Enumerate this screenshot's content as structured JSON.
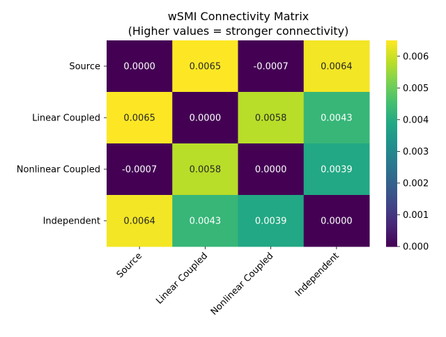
{
  "chart_data": {
    "type": "heatmap",
    "title": "wSMI Connectivity Matrix",
    "subtitle": "(Higher values = stronger connectivity)",
    "row_labels": [
      "Source",
      "Linear Coupled",
      "Nonlinear Coupled",
      "Independent"
    ],
    "col_labels": [
      "Source",
      "Linear Coupled",
      "Nonlinear Coupled",
      "Independent"
    ],
    "values": [
      [
        0.0,
        0.0065,
        -0.0007,
        0.0064
      ],
      [
        0.0065,
        0.0,
        0.0058,
        0.0043
      ],
      [
        -0.0007,
        0.0058,
        0.0,
        0.0039
      ],
      [
        0.0064,
        0.0043,
        0.0039,
        0.0
      ]
    ],
    "annotations": [
      [
        "0.0000",
        "0.0065",
        "-0.0007",
        "0.0064"
      ],
      [
        "0.0065",
        "0.0000",
        "0.0058",
        "0.0043"
      ],
      [
        "-0.0007",
        "0.0058",
        "0.0000",
        "0.0039"
      ],
      [
        "0.0064",
        "0.0043",
        "0.0039",
        "0.0000"
      ]
    ],
    "colormap": "viridis",
    "vmin": 0.0,
    "vmax": 0.0065,
    "colorbar_ticks": [
      "0.000",
      "0.001",
      "0.002",
      "0.003",
      "0.004",
      "0.005",
      "0.006"
    ],
    "colorbar_tick_values": [
      0,
      0.001,
      0.002,
      0.003,
      0.004,
      0.005,
      0.006
    ]
  }
}
